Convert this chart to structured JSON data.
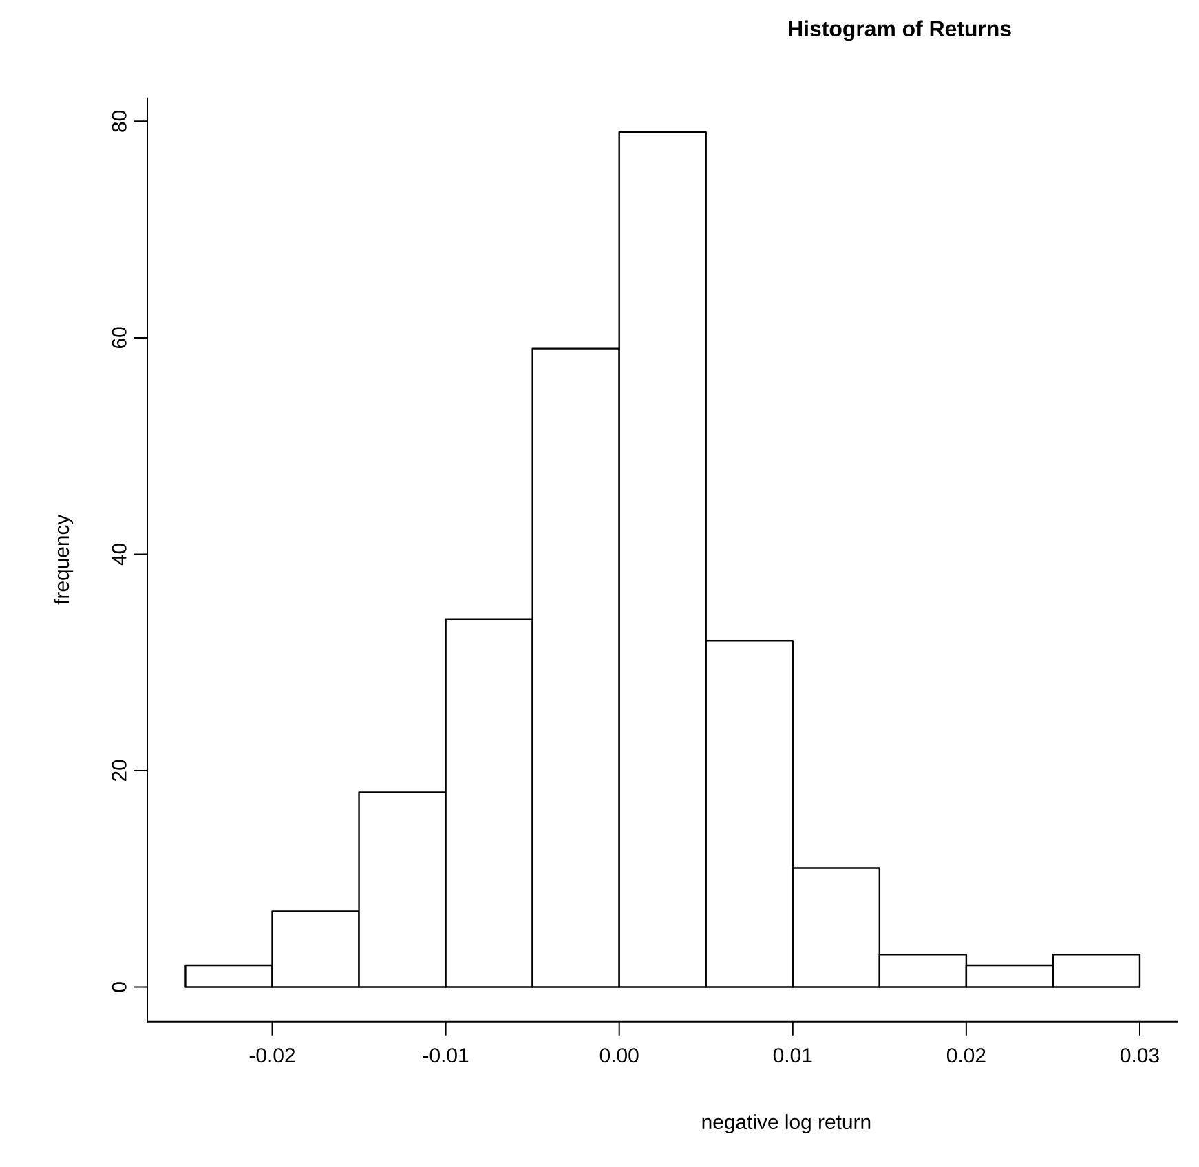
{
  "chart_data": {
    "type": "histogram",
    "title": "Histogram of Returns",
    "xlabel": "negative log return",
    "ylabel": "frequency",
    "bins": [
      -0.025,
      -0.02,
      -0.015,
      -0.01,
      -0.005,
      0.0,
      0.005,
      0.01,
      0.015,
      0.02,
      0.025,
      0.03
    ],
    "values": [
      2,
      7,
      18,
      34,
      59,
      79,
      32,
      11,
      3,
      2,
      3
    ],
    "color": "#ffffff",
    "xlim": [
      -0.0272,
      0.0322
    ],
    "ylim": [
      -3.2,
      82.2
    ],
    "xticks": [
      {
        "value": -0.02,
        "label": "-0.02"
      },
      {
        "value": -0.01,
        "label": "-0.01"
      },
      {
        "value": 0.0,
        "label": "0.00"
      },
      {
        "value": 0.01,
        "label": "0.01"
      },
      {
        "value": 0.02,
        "label": "0.02"
      },
      {
        "value": 0.03,
        "label": "0.03"
      }
    ],
    "yticks": [
      0,
      20,
      40,
      60,
      80
    ]
  }
}
